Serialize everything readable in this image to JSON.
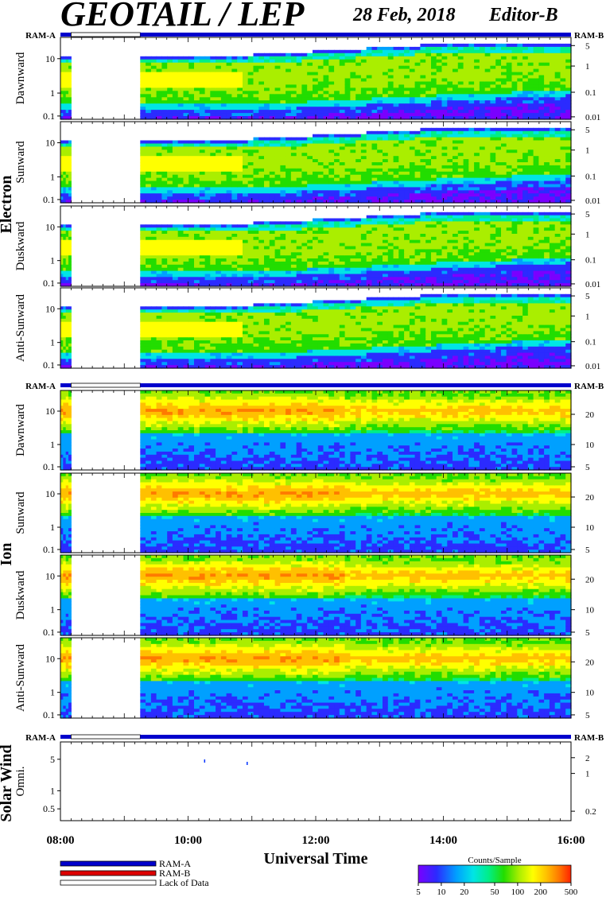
{
  "header": {
    "title": "GEOTAIL / LEP",
    "date": "28 Feb, 2018",
    "editor": "Editor-B"
  },
  "ram_labels": {
    "left": "RAM-A",
    "right": "RAM-B"
  },
  "colors": {
    "ram_a": "#0000cc",
    "ram_b": "#dd0000",
    "lack_of_data": "#ffffff",
    "colormap": [
      "#7a00ff",
      "#2b2bff",
      "#00a0ff",
      "#00e5e5",
      "#00ee88",
      "#22dd00",
      "#aaee00",
      "#ffff00",
      "#ffc000",
      "#ff7a00",
      "#ff2200"
    ]
  },
  "groups": [
    {
      "name": "Electron",
      "key": "electron"
    },
    {
      "name": "Ion",
      "key": "ion"
    },
    {
      "name": "Solar Wind",
      "key": "sw"
    }
  ],
  "chart_data": {
    "type": "heatmap",
    "x_axis": {
      "label": "Universal Time",
      "range": [
        "08:00",
        "16:00"
      ],
      "tick_labels": [
        "08:00",
        "10:00",
        "12:00",
        "14:00",
        "16:00"
      ]
    },
    "lack_of_data_interval": [
      "08:10",
      "09:15"
    ],
    "panels": [
      {
        "group": "Electron",
        "name": "Dawnward",
        "yticks": [
          "10",
          "1",
          "0.1"
        ],
        "right_ticks": [
          "5",
          "1",
          "0.1",
          "0.01"
        ],
        "log": true
      },
      {
        "group": "Electron",
        "name": "Sunward",
        "yticks": [
          "10",
          "1",
          "0.1"
        ],
        "right_ticks": [
          "5",
          "1",
          "0.1",
          "0.01"
        ],
        "log": true
      },
      {
        "group": "Electron",
        "name": "Duskward",
        "yticks": [
          "10",
          "1",
          "0.1"
        ],
        "right_ticks": [
          "5",
          "1",
          "0.1",
          "0.01"
        ],
        "log": true
      },
      {
        "group": "Electron",
        "name": "Anti-Sunward",
        "yticks": [
          "10",
          "1",
          "0.1"
        ],
        "right_ticks": [
          "5",
          "1",
          "0.1",
          "0.01"
        ],
        "log": true
      },
      {
        "group": "Ion",
        "name": "Dawnward",
        "yticks": [
          "10",
          "1",
          "0.1"
        ],
        "right_ticks": [
          "20",
          "10",
          "5"
        ],
        "log": true
      },
      {
        "group": "Ion",
        "name": "Sunward",
        "yticks": [
          "10",
          "1",
          "0.1"
        ],
        "right_ticks": [
          "20",
          "10",
          "5"
        ],
        "log": true
      },
      {
        "group": "Ion",
        "name": "Duskward",
        "yticks": [
          "10",
          "1",
          "0.1"
        ],
        "right_ticks": [
          "20",
          "10",
          "5"
        ],
        "log": true
      },
      {
        "group": "Ion",
        "name": "Anti-Sunward",
        "yticks": [
          "10",
          "1",
          "0.1"
        ],
        "right_ticks": [
          "20",
          "10",
          "5"
        ],
        "log": true
      },
      {
        "group": "Solar Wind",
        "name": "Omni.",
        "yticks": [
          "5",
          "1",
          "0.5"
        ],
        "right_ticks": [
          "2",
          "1",
          "0.2"
        ],
        "log": true
      }
    ],
    "colorbar": {
      "title": "Counts/Sample",
      "ticks": [
        "5",
        "10",
        "20",
        "50",
        "100",
        "200",
        "500"
      ],
      "range": [
        5,
        500
      ],
      "log": true
    },
    "legend": [
      {
        "label": "RAM-A",
        "color": "#0000cc"
      },
      {
        "label": "RAM-B",
        "color": "#dd0000"
      },
      {
        "label": "Lack of Data",
        "color": "#ffffff"
      }
    ]
  }
}
